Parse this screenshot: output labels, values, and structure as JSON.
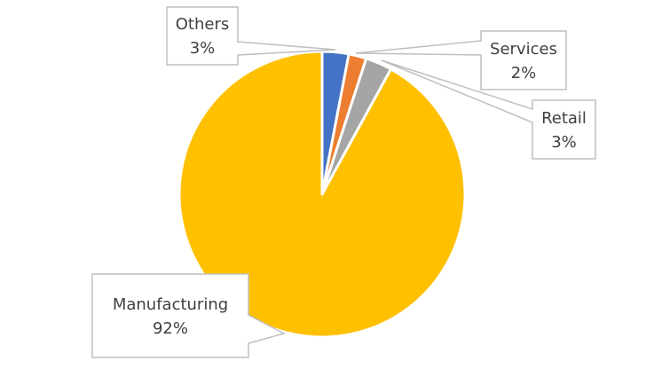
{
  "chart_data": {
    "type": "pie",
    "title": "",
    "categories": [
      "Others",
      "Services",
      "Retail",
      "Manufacturing"
    ],
    "values": [
      3,
      2,
      3,
      92
    ],
    "unit": "%",
    "colors": [
      "#4472C4",
      "#ED7D31",
      "#A5A5A5",
      "#FFC000"
    ],
    "start_angle_deg": 0,
    "direction": "clockwise",
    "legend": "none",
    "data_labels": [
      {
        "category": "Others",
        "label": "Others",
        "value": "3%"
      },
      {
        "category": "Services",
        "label": "Services",
        "value": "2%"
      },
      {
        "category": "Retail",
        "label": "Retail",
        "value": "3%"
      },
      {
        "category": "Manufacturing",
        "label": "Manufacturing",
        "value": "92%"
      }
    ]
  },
  "labels": {
    "others": {
      "name": "Others",
      "value": "3%"
    },
    "services": {
      "name": "Services",
      "value": "2%"
    },
    "retail": {
      "name": "Retail",
      "value": "3%"
    },
    "manufacturing": {
      "name": "Manufacturing",
      "value": "92%"
    }
  },
  "style": {
    "callout_border": "#BFBFBF",
    "callout_text": "#404040",
    "slice_separator": "#FFFFFF"
  }
}
